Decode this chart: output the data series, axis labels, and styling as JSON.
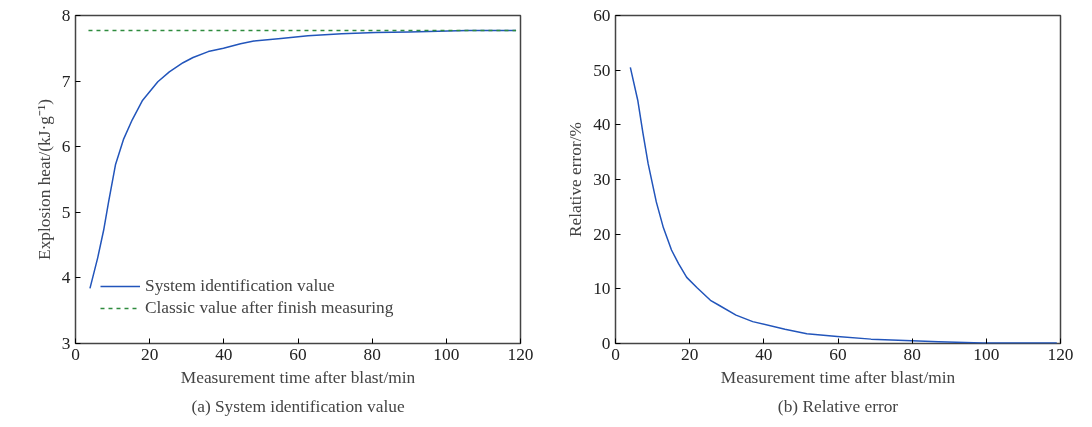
{
  "chart_data": [
    {
      "type": "line",
      "title": "(a) System identification value",
      "xlabel": "Measurement time after blast/min",
      "ylabel": "Explosion heat/(kJ·g⁻¹)",
      "xlim": [
        0,
        120
      ],
      "ylim": [
        3,
        8
      ],
      "xticks": [
        0,
        20,
        40,
        60,
        80,
        100,
        120
      ],
      "yticks": [
        3,
        4,
        5,
        6,
        7,
        8
      ],
      "grid": false,
      "legend": "bottom left",
      "line_style": "solid",
      "marker": "none",
      "series": [
        {
          "name": "System identification value",
          "color": "#2255bb",
          "x": [
            3.9,
            6,
            7.6,
            8.9,
            10.8,
            13,
            15.3,
            18,
            22.2,
            25.3,
            29,
            31.7,
            35.8,
            39.9,
            44.5,
            48.1,
            55.4,
            62.7,
            71.8,
            80.9,
            90,
            105.6,
            118.8
          ],
          "values": [
            3.84,
            4.31,
            4.73,
            5.15,
            5.73,
            6.12,
            6.41,
            6.7,
            6.99,
            7.14,
            7.28,
            7.36,
            7.45,
            7.5,
            7.57,
            7.61,
            7.65,
            7.69,
            7.72,
            7.74,
            7.75,
            7.77,
            7.77
          ]
        },
        {
          "name": "Classic value after finish measuring",
          "color": "#2e8b3e",
          "line_style": "dashed",
          "x": [
            3.5,
            118.8
          ],
          "values": [
            7.77,
            7.77
          ]
        }
      ]
    },
    {
      "type": "line",
      "title": "(b) Relative error",
      "xlabel": "Measurement time after blast/min",
      "ylabel": "Relative error/%",
      "xlim": [
        0,
        120
      ],
      "ylim": [
        0,
        60
      ],
      "xticks": [
        0,
        20,
        40,
        60,
        80,
        100,
        120
      ],
      "yticks": [
        0,
        10,
        20,
        30,
        40,
        50,
        60
      ],
      "grid": false,
      "legend": false,
      "line_style": "solid",
      "marker": "none",
      "series": [
        {
          "color": "#2255bb",
          "x": [
            4,
            6,
            7.4,
            8.8,
            11,
            12.9,
            15.1,
            17,
            19.2,
            22,
            25.6,
            27.9,
            32.5,
            37,
            45.7,
            51.6,
            59.8,
            68.9,
            79.9,
            87.1,
            99,
            119
          ],
          "values": [
            50.5,
            44.5,
            38.5,
            32.9,
            25.9,
            21.2,
            17.1,
            14.6,
            12.1,
            10.2,
            7.9,
            7.0,
            5.2,
            4.0,
            2.6,
            1.8,
            1.3,
            0.8,
            0.5,
            0.3,
            0.1,
            0.1
          ]
        }
      ]
    }
  ]
}
